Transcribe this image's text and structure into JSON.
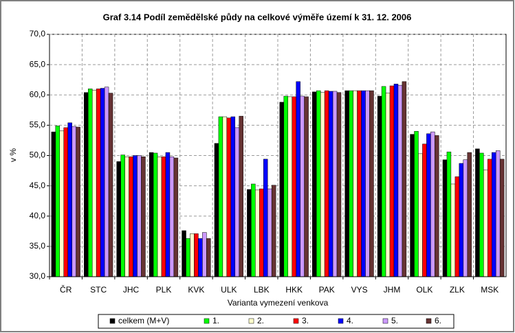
{
  "chart_data": {
    "type": "bar",
    "title": "Graf 3.14 Podíl zemědělské půdy na celkové výměře území k 31. 12. 2006",
    "x_label": "Varianta vymezení venkova",
    "y_label": "v %",
    "categories": [
      "ČR",
      "STC",
      "JHC",
      "PLK",
      "KVK",
      "ULK",
      "LBK",
      "HKK",
      "PAK",
      "VYS",
      "JHM",
      "OLK",
      "ZLK",
      "MSK"
    ],
    "series": [
      {
        "name": "celkem (M+V)",
        "color": "#000000",
        "values": [
          53.9,
          60.4,
          49.0,
          50.5,
          37.6,
          52.0,
          44.4,
          58.8,
          60.5,
          60.7,
          59.8,
          53.5,
          49.3,
          51.1
        ]
      },
      {
        "name": "1.",
        "color": "#00ff00",
        "values": [
          54.9,
          61.0,
          50.1,
          50.4,
          36.3,
          56.4,
          45.3,
          59.8,
          60.7,
          60.7,
          61.4,
          54.0,
          50.6,
          50.4
        ]
      },
      {
        "name": "2.",
        "color": "#ffffcc",
        "values": [
          54.1,
          60.8,
          49.8,
          49.8,
          37.1,
          56.4,
          44.3,
          59.7,
          60.4,
          60.7,
          60.3,
          50.3,
          45.3,
          47.6
        ]
      },
      {
        "name": "3.",
        "color": "#ff0000",
        "values": [
          54.6,
          61.0,
          49.8,
          49.8,
          37.1,
          56.2,
          44.5,
          59.7,
          60.7,
          60.7,
          61.5,
          51.9,
          46.5,
          49.4
        ]
      },
      {
        "name": "4.",
        "color": "#0000ff",
        "values": [
          55.4,
          61.1,
          50.0,
          50.5,
          36.3,
          56.4,
          49.4,
          62.2,
          60.6,
          60.7,
          61.8,
          53.6,
          48.7,
          50.5
        ]
      },
      {
        "name": "5.",
        "color": "#cc99ff",
        "values": [
          54.8,
          61.3,
          50.0,
          49.8,
          37.3,
          54.6,
          44.5,
          59.8,
          60.6,
          60.7,
          61.6,
          53.9,
          49.3,
          50.8
        ]
      },
      {
        "name": "6.",
        "color": "#663333",
        "values": [
          54.7,
          60.3,
          49.8,
          49.6,
          36.3,
          56.5,
          45.1,
          59.7,
          60.4,
          60.7,
          62.2,
          53.3,
          50.5,
          49.4
        ]
      }
    ],
    "ylim": [
      30,
      70
    ],
    "yticks": [
      {
        "value": 30,
        "label": "30,0"
      },
      {
        "value": 35,
        "label": "35,0"
      },
      {
        "value": 40,
        "label": "40,0"
      },
      {
        "value": 45,
        "label": "45,0"
      },
      {
        "value": 50,
        "label": "50,0"
      },
      {
        "value": 55,
        "label": "55,0"
      },
      {
        "value": 60,
        "label": "60,0"
      },
      {
        "value": 65,
        "label": "65,0"
      },
      {
        "value": 70,
        "label": "70,0"
      }
    ],
    "grid": true
  }
}
